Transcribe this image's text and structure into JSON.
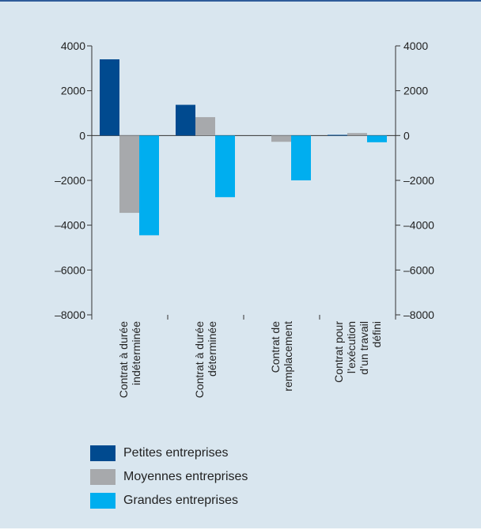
{
  "chart_data": {
    "type": "bar",
    "categories": [
      [
        "Contrat à durée",
        "indéterminée"
      ],
      [
        "Contrat à durée",
        "déterminée"
      ],
      [
        "Contrat de",
        "remplacement"
      ],
      [
        "Contrat pour",
        "l’exécution",
        "d’un travail",
        "défini"
      ]
    ],
    "series": [
      {
        "name": "Petites entreprises",
        "color": "#004a8f",
        "values": [
          3400,
          1370,
          0,
          30
        ]
      },
      {
        "name": "Moyennes entreprises",
        "color": "#a7a9ac",
        "values": [
          -3450,
          820,
          -280,
          110
        ]
      },
      {
        "name": "Grandes entreprises",
        "color": "#00aeef",
        "values": [
          -4450,
          -2750,
          -2000,
          -300
        ]
      }
    ],
    "ylim": [
      -8000,
      4000
    ],
    "yticks": [
      4000,
      2000,
      0,
      -2000,
      -4000,
      -6000,
      -8000
    ],
    "ytick_labels": [
      "4000",
      "2000",
      "0",
      "–2000",
      "–4000",
      "–6000",
      "–8000"
    ],
    "legend_position": "bottom-left",
    "grid": false,
    "title": "",
    "xlabel": "",
    "ylabel": ""
  }
}
